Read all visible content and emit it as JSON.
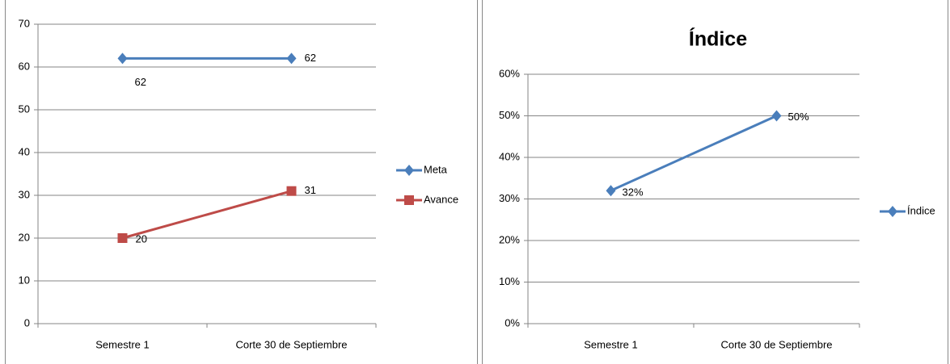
{
  "chart_data": [
    {
      "type": "line",
      "categories": [
        "Semestre 1",
        "Corte 30 de Septiembre"
      ],
      "series": [
        {
          "name": "Meta",
          "color": "#4a7ebb",
          "marker": "diamond",
          "values": [
            62,
            62
          ]
        },
        {
          "name": "Avance",
          "color": "#be4b48",
          "marker": "square",
          "values": [
            20,
            31
          ]
        }
      ],
      "ylim": [
        0,
        70
      ],
      "yticks": [
        0,
        10,
        20,
        30,
        40,
        50,
        60,
        70
      ],
      "grid": true,
      "legend": "right"
    },
    {
      "type": "line",
      "title": "Índice",
      "categories": [
        "Semestre 1",
        "Corte 30 de Septiembre"
      ],
      "series": [
        {
          "name": "Índice",
          "color": "#4a7ebb",
          "marker": "diamond",
          "values": [
            32,
            50
          ],
          "value_labels": [
            "32%",
            "50%"
          ]
        }
      ],
      "ylim": [
        0,
        60
      ],
      "yticks": [
        {
          "value": 0,
          "label": "0%"
        },
        {
          "value": 10,
          "label": "10%"
        },
        {
          "value": 20,
          "label": "20%"
        },
        {
          "value": 30,
          "label": "30%"
        },
        {
          "value": 40,
          "label": "40%"
        },
        {
          "value": 50,
          "label": "50%"
        },
        {
          "value": 60,
          "label": "60%"
        }
      ],
      "grid": true,
      "legend": "right"
    }
  ]
}
